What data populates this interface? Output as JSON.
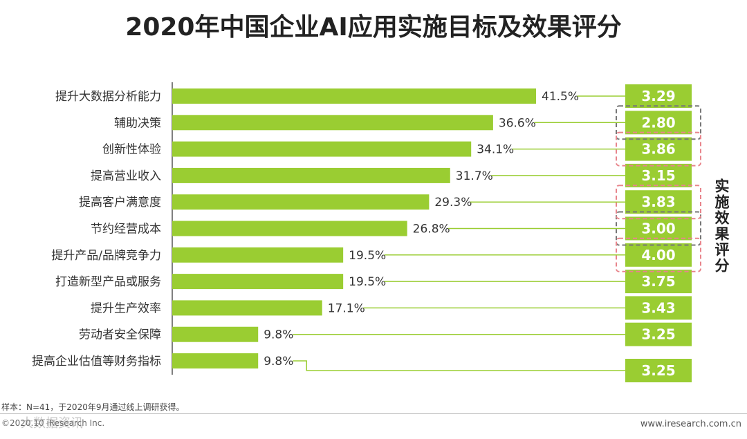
{
  "chart_data": {
    "type": "bar",
    "orientation": "horizontal",
    "title": "2020年中国企业AI应用实施目标及效果评分",
    "categories": [
      "提升大数据分析能力",
      "辅助决策",
      "创新性体验",
      "提高营业收入",
      "提高客户满意度",
      "节约经营成本",
      "提升产品/品牌竞争力",
      "打造新型产品或服务",
      "提升生产效率",
      "劳动者安全保障",
      "提高企业估值等财务指标"
    ],
    "series": [
      {
        "values": [
          41.5,
          36.6,
          34.1,
          31.7,
          29.3,
          26.8,
          19.5,
          19.5,
          17.1,
          9.8,
          9.8
        ],
        "labels": [
          "41.5%",
          "36.6%",
          "34.1%",
          "31.7%",
          "29.3%",
          "26.8%",
          "19.5%",
          "19.5%",
          "17.1%",
          "9.8%",
          "9.8%"
        ]
      }
    ],
    "scores": {
      "name": "实施效果评分",
      "values": [
        "3.29",
        "2.80",
        "3.86",
        "3.15",
        "3.83",
        "3.00",
        "4.00",
        "3.75",
        "3.43",
        "3.25",
        "3.25"
      ]
    },
    "highlight_groups": [
      {
        "style": "gray-dashed",
        "items": [
          1,
          5
        ]
      },
      {
        "style": "pink-dashed",
        "items": [
          2,
          4,
          6
        ]
      }
    ],
    "xlim": [
      0,
      41.5
    ],
    "grid": false,
    "legend": "none",
    "colors": {
      "bar": "#9ACD32",
      "score_box": "#9ACD32",
      "connector": "#9ACD32",
      "highlight_gray": "#777777",
      "highlight_pink": "#E8858C"
    }
  },
  "footer": {
    "note": "样本：N=41，于2020年9月通过线上调研获得。",
    "copyright": "©2020.10 iResearch Inc.",
    "watermark": "大数据资讯",
    "website": "www.iresearch.com.cn"
  }
}
